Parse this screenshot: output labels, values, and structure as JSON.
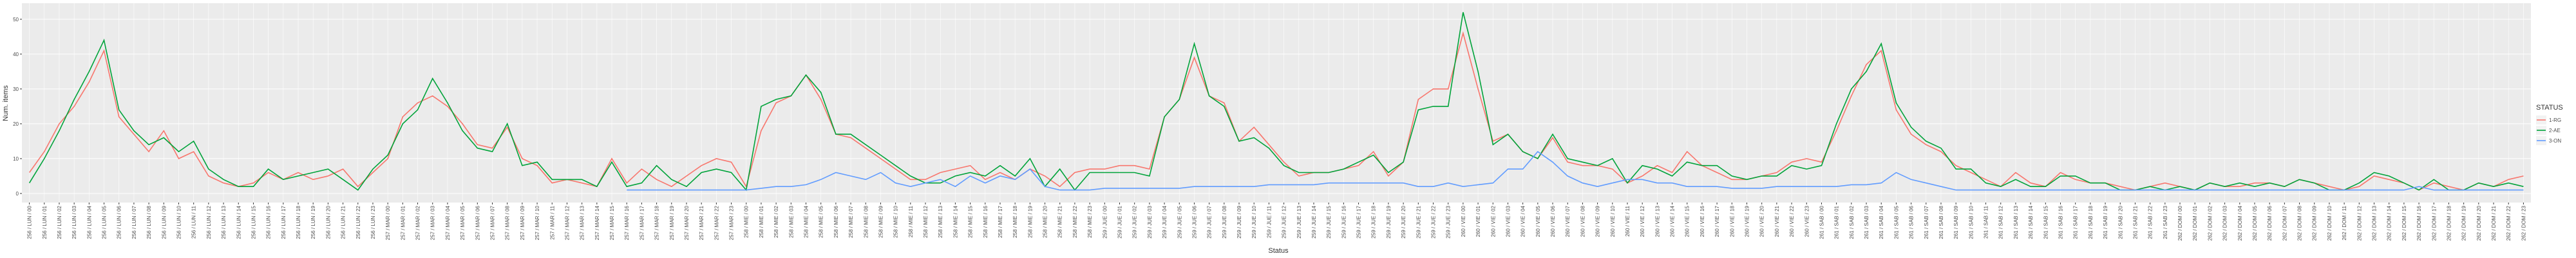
{
  "chart_data": {
    "type": "line",
    "x_label": "Status",
    "y_label": "Num. items",
    "legend_title": "STATUS",
    "legend_position": "right",
    "grid": true,
    "ylim": [
      -2.6,
      54.6
    ],
    "yticks": [
      0,
      10,
      20,
      30,
      40,
      50
    ],
    "categories": [
      "256 / LUN / 00",
      "256 / LUN / 01",
      "256 / LUN / 02",
      "256 / LUN / 03",
      "256 / LUN / 04",
      "256 / LUN / 05",
      "256 / LUN / 06",
      "256 / LUN / 07",
      "256 / LUN / 08",
      "256 / LUN / 09",
      "256 / LUN / 10",
      "256 / LUN / 11",
      "256 / LUN / 12",
      "256 / LUN / 13",
      "256 / LUN / 14",
      "256 / LUN / 15",
      "256 / LUN / 16",
      "256 / LUN / 17",
      "256 / LUN / 18",
      "256 / LUN / 19",
      "256 / LUN / 20",
      "256 / LUN / 21",
      "256 / LUN / 22",
      "256 / LUN / 23",
      "257 / MAR / 00",
      "257 / MAR / 01",
      "257 / MAR / 02",
      "257 / MAR / 03",
      "257 / MAR / 04",
      "257 / MAR / 05",
      "257 / MAR / 06",
      "257 / MAR / 07",
      "257 / MAR / 08",
      "257 / MAR / 09",
      "257 / MAR / 10",
      "257 / MAR / 11",
      "257 / MAR / 12",
      "257 / MAR / 13",
      "257 / MAR / 14",
      "257 / MAR / 15",
      "257 / MAR / 16",
      "257 / MAR / 17",
      "257 / MAR / 18",
      "257 / MAR / 19",
      "257 / MAR / 20",
      "257 / MAR / 21",
      "257 / MAR / 22",
      "257 / MAR / 23",
      "258 / MIE / 00",
      "258 / MIE / 01",
      "258 / MIE / 02",
      "258 / MIE / 03",
      "258 / MIE / 04",
      "258 / MIE / 05",
      "258 / MIE / 06",
      "258 / MIE / 07",
      "258 / MIE / 08",
      "258 / MIE / 09",
      "258 / MIE / 10",
      "258 / MIE / 11",
      "258 / MIE / 12",
      "258 / MIE / 13",
      "258 / MIE / 14",
      "258 / MIE / 15",
      "258 / MIE / 16",
      "258 / MIE / 17",
      "258 / MIE / 18",
      "258 / MIE / 19",
      "258 / MIE / 20",
      "258 / MIE / 21",
      "258 / MIE / 22",
      "258 / MIE / 23",
      "259 / JUE / 00",
      "259 / JUE / 01",
      "259 / JUE / 02",
      "259 / JUE / 03",
      "259 / JUE / 04",
      "259 / JUE / 05",
      "259 / JUE / 06",
      "259 / JUE / 07",
      "259 / JUE / 08",
      "259 / JUE / 09",
      "259 / JUE / 10",
      "259 / JUE / 11",
      "259 / JUE / 12",
      "259 / JUE / 13",
      "259 / JUE / 14",
      "259 / JUE / 15",
      "259 / JUE / 16",
      "259 / JUE / 17",
      "259 / JUE / 18",
      "259 / JUE / 19",
      "259 / JUE / 20",
      "259 / JUE / 21",
      "259 / JUE / 22",
      "259 / JUE / 23",
      "260 / VIE / 00",
      "260 / VIE / 01",
      "260 / VIE / 02",
      "260 / VIE / 03",
      "260 / VIE / 04",
      "260 / VIE / 05",
      "260 / VIE / 06",
      "260 / VIE / 07",
      "260 / VIE / 08",
      "260 / VIE / 09",
      "260 / VIE / 10",
      "260 / VIE / 11",
      "260 / VIE / 12",
      "260 / VIE / 13",
      "260 / VIE / 14",
      "260 / VIE / 15",
      "260 / VIE / 16",
      "260 / VIE / 17",
      "260 / VIE / 18",
      "260 / VIE / 19",
      "260 / VIE / 20",
      "260 / VIE / 21",
      "260 / VIE / 22",
      "260 / VIE / 23",
      "261 / SAB / 00",
      "261 / SAB / 01",
      "261 / SAB / 02",
      "261 / SAB / 03",
      "261 / SAB / 04",
      "261 / SAB / 05",
      "261 / SAB / 06",
      "261 / SAB / 07",
      "261 / SAB / 08",
      "261 / SAB / 09",
      "261 / SAB / 10",
      "261 / SAB / 11",
      "261 / SAB / 12",
      "261 / SAB / 13",
      "261 / SAB / 14",
      "261 / SAB / 15",
      "261 / SAB / 16",
      "261 / SAB / 17",
      "261 / SAB / 18",
      "261 / SAB / 19",
      "261 / SAB / 20",
      "261 / SAB / 21",
      "261 / SAB / 22",
      "261 / SAB / 23",
      "262 / DOM / 00",
      "262 / DOM / 01",
      "262 / DOM / 02",
      "262 / DOM / 03",
      "262 / DOM / 04",
      "262 / DOM / 05",
      "262 / DOM / 06",
      "262 / DOM / 07",
      "262 / DOM / 08",
      "262 / DOM / 09",
      "262 / DOM / 10",
      "262 / DOM / 11",
      "262 / DOM / 12",
      "262 / DOM / 13",
      "262 / DOM / 14",
      "262 / DOM / 15",
      "262 / DOM / 16",
      "262 / DOM / 17",
      "262 / DOM / 18",
      "262 / DOM / 19",
      "262 / DOM / 20",
      "262 / DOM / 21",
      "262 / DOM / 22",
      "262 / DOM / 23"
    ],
    "series": [
      {
        "name": "1-RG",
        "color": "#F8766D",
        "values": [
          6,
          12,
          20,
          25,
          32,
          41,
          22,
          17,
          12,
          18,
          10,
          12,
          5,
          3,
          2,
          3,
          6,
          4,
          6,
          4,
          5,
          7,
          2,
          6,
          10,
          22,
          26,
          28,
          25,
          20,
          14,
          13,
          19,
          10,
          8,
          3,
          4,
          3,
          2,
          10,
          3,
          7,
          4,
          2,
          5,
          8,
          10,
          9,
          2,
          18,
          26,
          28,
          34,
          27,
          17,
          16,
          13,
          10,
          7,
          4,
          4,
          6,
          7,
          8,
          4,
          6,
          4,
          7,
          5,
          2,
          6,
          7,
          7,
          8,
          8,
          7,
          22,
          27,
          39,
          28,
          26,
          15,
          19,
          14,
          9,
          5,
          6,
          6,
          7,
          8,
          12,
          5,
          9,
          27,
          30,
          30,
          46,
          30,
          15,
          17,
          12,
          10,
          16,
          9,
          8,
          8,
          7,
          3,
          5,
          8,
          6,
          12,
          8,
          6,
          4,
          4,
          5,
          6,
          9,
          10,
          9,
          18,
          28,
          37,
          41,
          24,
          17,
          14,
          12,
          8,
          6,
          4,
          2,
          6,
          3,
          2,
          6,
          4,
          3,
          3,
          2,
          1,
          2,
          3,
          2,
          1,
          3,
          2,
          2,
          3,
          3,
          2,
          4,
          3,
          2,
          1,
          2,
          5,
          4,
          3,
          1,
          3,
          2,
          1,
          3,
          2,
          4,
          5
        ]
      },
      {
        "name": "2-AE",
        "color": "#00A33A",
        "values": [
          3,
          10,
          18,
          27,
          35,
          44,
          24,
          18,
          14,
          16,
          12,
          15,
          7,
          4,
          2,
          2,
          7,
          4,
          5,
          6,
          7,
          4,
          1,
          7,
          11,
          20,
          24,
          33,
          26,
          18,
          13,
          12,
          20,
          8,
          9,
          4,
          4,
          4,
          2,
          9,
          2,
          3,
          8,
          4,
          2,
          6,
          7,
          6,
          1,
          25,
          27,
          28,
          34,
          29,
          17,
          17,
          14,
          11,
          8,
          5,
          3,
          3,
          5,
          6,
          5,
          8,
          5,
          10,
          2,
          7,
          1,
          6,
          6,
          6,
          6,
          5,
          22,
          27,
          43,
          28,
          25,
          15,
          16,
          13,
          8,
          6,
          6,
          6,
          7,
          9,
          11,
          6,
          9,
          24,
          25,
          25,
          52,
          35,
          14,
          17,
          12,
          10,
          17,
          10,
          9,
          8,
          10,
          3,
          8,
          7,
          5,
          9,
          8,
          8,
          5,
          4,
          5,
          5,
          8,
          7,
          8,
          20,
          30,
          35,
          43,
          26,
          19,
          15,
          13,
          7,
          7,
          3,
          2,
          4,
          2,
          2,
          5,
          5,
          3,
          3,
          1,
          1,
          2,
          1,
          2,
          1,
          3,
          2,
          3,
          2,
          3,
          2,
          4,
          3,
          1,
          1,
          3,
          6,
          5,
          3,
          1,
          4,
          1,
          1,
          3,
          2,
          3,
          2
        ]
      },
      {
        "name": "3-ON",
        "color": "#619CFF",
        "values": [
          null,
          null,
          null,
          null,
          null,
          null,
          null,
          null,
          null,
          null,
          null,
          null,
          null,
          null,
          null,
          null,
          null,
          null,
          null,
          null,
          null,
          null,
          null,
          null,
          null,
          null,
          null,
          null,
          null,
          null,
          null,
          null,
          null,
          null,
          null,
          null,
          null,
          null,
          null,
          null,
          1,
          1,
          1,
          1,
          1,
          1,
          1,
          1,
          1,
          1.5,
          2,
          2,
          2.5,
          4,
          6,
          5,
          4,
          6,
          3,
          2,
          3,
          4,
          2,
          5,
          3,
          5,
          4,
          7,
          2,
          1,
          1,
          1,
          1.5,
          1.5,
          1.5,
          1.5,
          1.5,
          1.5,
          2,
          2,
          2,
          2,
          2,
          2.5,
          2.5,
          2.5,
          2.5,
          3,
          3,
          3,
          3,
          3,
          3,
          2,
          2,
          3,
          2,
          2.5,
          3,
          7,
          7,
          12,
          9,
          5,
          3,
          2,
          3,
          4,
          4,
          3,
          3,
          2,
          2,
          2,
          1.5,
          1.5,
          1.5,
          2,
          2,
          2,
          2,
          2,
          2.5,
          2.5,
          3,
          6,
          4,
          3,
          2,
          1,
          1,
          1,
          1,
          1,
          1,
          1,
          1,
          1,
          1,
          1,
          1,
          1,
          1,
          1,
          1,
          1,
          1,
          1,
          1,
          1,
          1,
          1,
          1,
          1,
          1,
          1,
          1,
          1,
          1,
          1,
          2,
          1,
          1,
          1,
          1,
          1,
          1,
          1
        ]
      }
    ]
  }
}
